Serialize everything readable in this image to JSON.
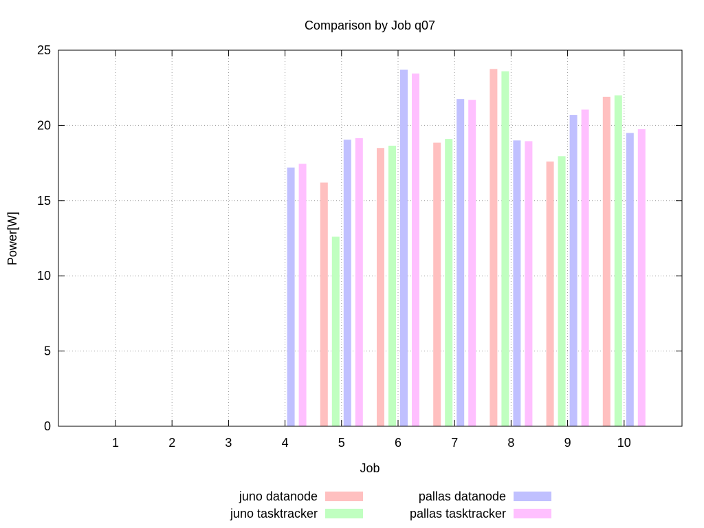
{
  "chart_data": {
    "type": "bar",
    "title": "Comparison by Job q07",
    "xlabel": "Job",
    "ylabel": "Power[W]",
    "ylim": [
      0,
      25
    ],
    "yticks": [
      0,
      5,
      10,
      15,
      20,
      25
    ],
    "categories": [
      "1",
      "2",
      "3",
      "4",
      "5",
      "6",
      "7",
      "8",
      "9",
      "10"
    ],
    "grid": true,
    "legend_position": "bottom",
    "series": [
      {
        "name": "juno datanode",
        "color": "#ffc0c0",
        "values": [
          null,
          null,
          null,
          null,
          16.2,
          18.5,
          18.85,
          23.75,
          17.6,
          21.9
        ]
      },
      {
        "name": "juno tasktracker",
        "color": "#c0ffc0",
        "values": [
          null,
          null,
          null,
          null,
          12.6,
          18.65,
          19.1,
          23.6,
          17.95,
          22.0
        ]
      },
      {
        "name": "pallas datanode",
        "color": "#c0c0ff",
        "values": [
          null,
          null,
          null,
          17.2,
          19.05,
          23.7,
          21.75,
          19.0,
          20.7,
          19.5
        ]
      },
      {
        "name": "pallas tasktracker",
        "color": "#ffc0ff",
        "values": [
          null,
          null,
          null,
          17.45,
          19.15,
          23.45,
          21.7,
          18.95,
          21.05,
          19.75
        ]
      }
    ]
  }
}
